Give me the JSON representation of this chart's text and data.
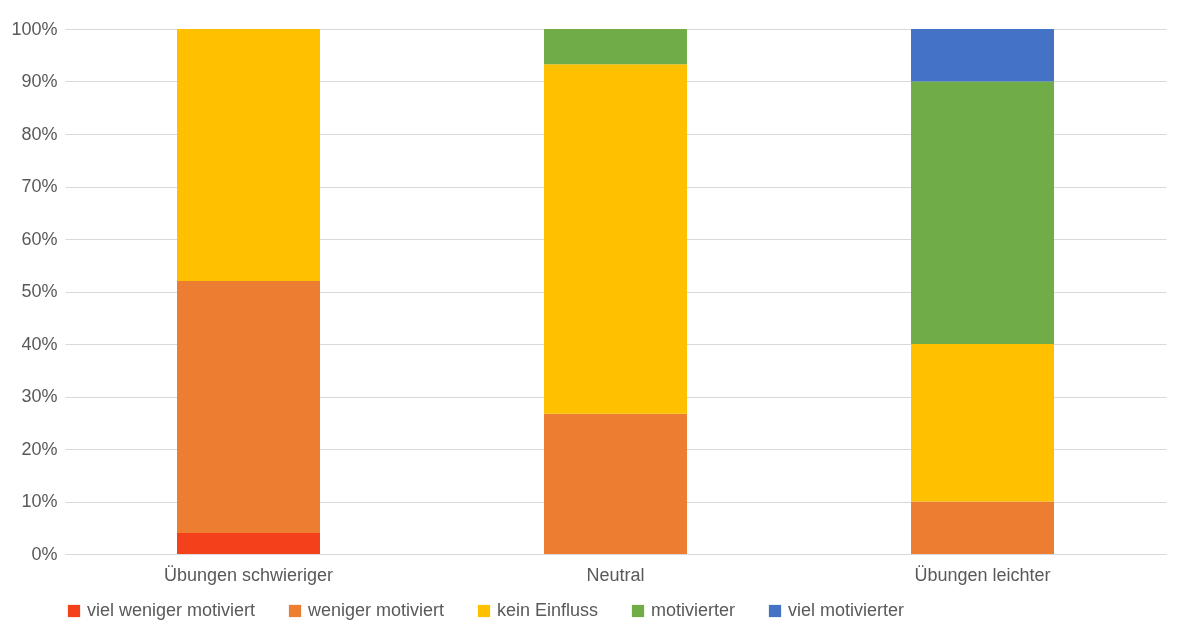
{
  "chart_data": {
    "type": "bar",
    "stacked": true,
    "categories": [
      "Übungen schwieriger",
      "Neutral",
      "Übungen leichter"
    ],
    "series": [
      {
        "name": "viel weniger motiviert",
        "color": "#f4411c",
        "values": [
          4,
          null,
          null
        ]
      },
      {
        "name": "weniger motiviert",
        "color": "#ed7d31",
        "values": [
          48,
          26.7,
          10
        ]
      },
      {
        "name": "kein Einfluss",
        "color": "#ffc000",
        "values": [
          48,
          66.6,
          30
        ]
      },
      {
        "name": "motivierter",
        "color": "#70ad47",
        "values": [
          null,
          6.7,
          50
        ]
      },
      {
        "name": "viel motivierter",
        "color": "#4472c4",
        "values": [
          null,
          null,
          10
        ]
      }
    ],
    "ylim": [
      0,
      100
    ],
    "yticks": [
      {
        "value": 0,
        "label": "0%"
      },
      {
        "value": 10,
        "label": "10%"
      },
      {
        "value": 20,
        "label": "20%"
      },
      {
        "value": 30,
        "label": "30%"
      },
      {
        "value": 40,
        "label": "40%"
      },
      {
        "value": 50,
        "label": "50%"
      },
      {
        "value": 60,
        "label": "60%"
      },
      {
        "value": 70,
        "label": "70%"
      },
      {
        "value": 80,
        "label": "80%"
      },
      {
        "value": 90,
        "label": "90%"
      },
      {
        "value": 100,
        "label": "100%"
      }
    ],
    "grid": "y",
    "legend": "bottom"
  }
}
